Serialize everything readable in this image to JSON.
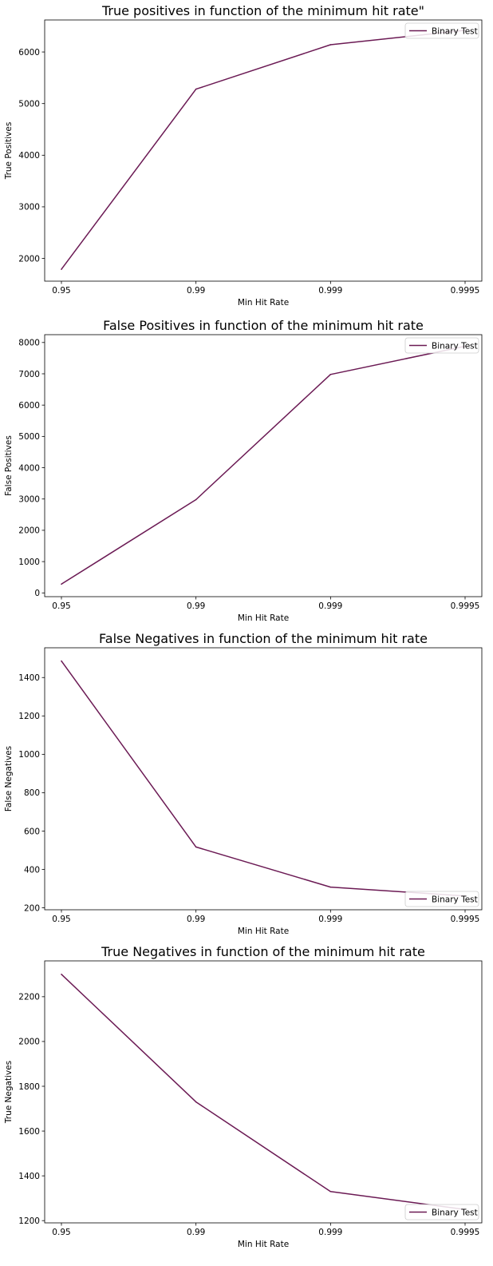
{
  "figure": {
    "background": "#ffffff",
    "line_color": "#6b1a54"
  },
  "chart_data": [
    {
      "type": "line",
      "title": "True positives in function of the minimum hit rate\"",
      "xlabel": "Min Hit Rate",
      "ylabel": "True Positives",
      "categories": [
        "0.95",
        "0.99",
        "0.999",
        "0.9995"
      ],
      "ylim": [
        1560,
        6620
      ],
      "yticks": [
        2000,
        3000,
        4000,
        5000,
        6000
      ],
      "legend_position": "upper right",
      "series": [
        {
          "name": "Binary Test",
          "color": "#6b1a54",
          "values": [
            1790,
            5280,
            6140,
            6420
          ]
        }
      ]
    },
    {
      "type": "line",
      "title": "False Positives in function of the minimum hit rate",
      "xlabel": "Min Hit Rate",
      "ylabel": "False Positives",
      "categories": [
        "0.95",
        "0.99",
        "0.999",
        "0.9995"
      ],
      "ylim": [
        -120,
        8250
      ],
      "yticks": [
        0,
        1000,
        2000,
        3000,
        4000,
        5000,
        6000,
        7000,
        8000
      ],
      "legend_position": "upper right",
      "series": [
        {
          "name": "Binary Test",
          "color": "#6b1a54",
          "values": [
            280,
            2980,
            6980,
            7880
          ]
        }
      ]
    },
    {
      "type": "line",
      "title": "False Negatives in function of the minimum hit rate",
      "xlabel": "Min Hit Rate",
      "ylabel": "False Negatives",
      "categories": [
        "0.95",
        "0.99",
        "0.999",
        "0.9995"
      ],
      "ylim": [
        190,
        1555
      ],
      "yticks": [
        200,
        400,
        600,
        800,
        1000,
        1200,
        1400
      ],
      "legend_position": "lower right",
      "series": [
        {
          "name": "Binary Test",
          "color": "#6b1a54",
          "values": [
            1486,
            517,
            308,
            262
          ]
        }
      ]
    },
    {
      "type": "line",
      "title": "True Negatives in function of the minimum hit rate",
      "xlabel": "Min Hit Rate",
      "ylabel": "True Negatives",
      "categories": [
        "0.95",
        "0.99",
        "0.999",
        "0.9995"
      ],
      "ylim": [
        1190,
        2360
      ],
      "yticks": [
        1200,
        1400,
        1600,
        1800,
        2000,
        2200
      ],
      "legend_position": "lower right",
      "series": [
        {
          "name": "Binary Test",
          "color": "#6b1a54",
          "values": [
            2300,
            1730,
            1330,
            1250
          ]
        }
      ]
    }
  ]
}
